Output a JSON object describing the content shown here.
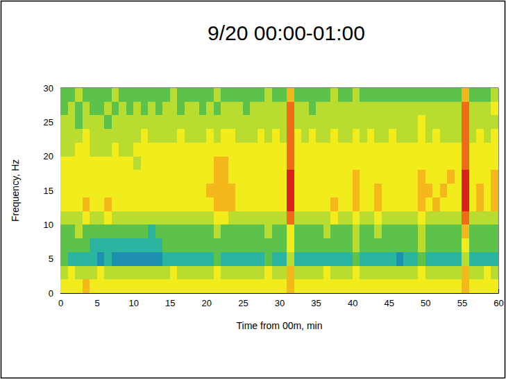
{
  "chart_data": {
    "type": "heatmap",
    "title": "9/20 00:00-01:00",
    "x_label": "Time from 00m, min",
    "y_label": "Frequency, Hz",
    "xlim": [
      0,
      60
    ],
    "ylim": [
      0,
      30
    ],
    "xticks": [
      0,
      5,
      10,
      15,
      20,
      25,
      30,
      35,
      40,
      45,
      50,
      55,
      60
    ],
    "yticks": [
      0,
      5,
      10,
      15,
      20,
      25,
      30
    ],
    "zlim": [
      0,
      9
    ],
    "x_bins": [
      0,
      1,
      2,
      3,
      4,
      5,
      6,
      7,
      8,
      9,
      10,
      11,
      12,
      13,
      14,
      15,
      16,
      17,
      18,
      19,
      20,
      21,
      22,
      23,
      24,
      25,
      26,
      27,
      28,
      29,
      30,
      31,
      32,
      33,
      34,
      35,
      36,
      37,
      38,
      39,
      40,
      41,
      42,
      43,
      44,
      45,
      46,
      47,
      48,
      49,
      50,
      51,
      52,
      53,
      54,
      55,
      56,
      57,
      58,
      59,
      60
    ],
    "y_bins": [
      0,
      2,
      4,
      6,
      8,
      10,
      12,
      14,
      16,
      18,
      20,
      22,
      24,
      26,
      28,
      30
    ],
    "cells": [
      [
        6,
        6,
        6,
        7,
        6,
        6,
        6,
        6,
        6,
        6,
        6,
        6,
        6,
        6,
        6,
        6,
        6,
        6,
        6,
        6,
        6,
        6,
        6,
        6,
        6,
        6,
        6,
        6,
        6,
        6,
        6,
        7,
        6,
        6,
        6,
        6,
        6,
        6,
        6,
        6,
        6,
        6,
        6,
        6,
        6,
        6,
        6,
        6,
        6,
        6,
        6,
        6,
        6,
        6,
        6,
        7,
        6,
        6,
        6,
        6
      ],
      [
        5,
        6,
        5,
        5,
        5,
        6,
        5,
        5,
        5,
        5,
        5,
        5,
        5,
        5,
        5,
        6,
        5,
        5,
        5,
        5,
        5,
        6,
        5,
        5,
        5,
        5,
        5,
        5,
        6,
        5,
        5,
        7,
        5,
        5,
        5,
        5,
        6,
        5,
        5,
        5,
        6,
        5,
        5,
        5,
        5,
        5,
        5,
        5,
        5,
        6,
        5,
        5,
        5,
        5,
        5,
        7,
        5,
        5,
        6,
        5
      ],
      [
        4,
        3,
        3,
        3,
        3,
        2,
        3,
        2,
        2,
        2,
        2,
        2,
        2,
        2,
        3,
        3,
        3,
        3,
        3,
        3,
        3,
        4,
        3,
        3,
        3,
        3,
        3,
        3,
        4,
        3,
        3,
        5,
        3,
        3,
        3,
        3,
        3,
        3,
        3,
        3,
        4,
        3,
        3,
        3,
        3,
        3,
        2,
        3,
        3,
        4,
        3,
        3,
        3,
        3,
        3,
        5,
        3,
        3,
        3,
        3
      ],
      [
        4,
        4,
        4,
        4,
        3,
        3,
        3,
        3,
        3,
        3,
        3,
        3,
        3,
        3,
        4,
        4,
        4,
        4,
        4,
        4,
        4,
        4,
        4,
        4,
        4,
        4,
        4,
        4,
        4,
        4,
        4,
        6,
        4,
        4,
        4,
        4,
        4,
        4,
        4,
        4,
        5,
        4,
        4,
        4,
        4,
        4,
        4,
        4,
        4,
        5,
        4,
        4,
        4,
        4,
        4,
        6,
        4,
        4,
        4,
        4
      ],
      [
        4,
        4,
        5,
        4,
        4,
        4,
        4,
        4,
        4,
        4,
        4,
        4,
        3,
        4,
        4,
        4,
        4,
        4,
        4,
        4,
        4,
        5,
        4,
        4,
        4,
        4,
        4,
        4,
        5,
        4,
        4,
        6,
        4,
        4,
        4,
        4,
        5,
        4,
        4,
        4,
        5,
        4,
        4,
        5,
        4,
        4,
        4,
        4,
        4,
        5,
        4,
        4,
        4,
        4,
        4,
        7,
        4,
        4,
        4,
        4
      ],
      [
        5,
        5,
        5,
        6,
        5,
        5,
        6,
        5,
        5,
        5,
        5,
        5,
        5,
        5,
        5,
        5,
        5,
        5,
        5,
        5,
        5,
        6,
        6,
        5,
        5,
        5,
        5,
        5,
        5,
        5,
        5,
        8,
        5,
        5,
        5,
        5,
        5,
        6,
        5,
        5,
        6,
        5,
        5,
        6,
        5,
        5,
        5,
        5,
        5,
        6,
        5,
        5,
        5,
        5,
        5,
        8,
        5,
        5,
        5,
        5
      ],
      [
        6,
        6,
        6,
        7,
        6,
        6,
        7,
        6,
        6,
        6,
        6,
        6,
        6,
        6,
        6,
        6,
        6,
        6,
        6,
        6,
        6,
        7,
        7,
        7,
        6,
        6,
        6,
        6,
        6,
        6,
        6,
        9,
        6,
        6,
        6,
        6,
        6,
        7,
        6,
        6,
        7,
        6,
        6,
        7,
        6,
        6,
        6,
        6,
        6,
        7,
        6,
        7,
        6,
        6,
        6,
        9,
        6,
        7,
        6,
        7
      ],
      [
        6,
        6,
        6,
        6,
        6,
        6,
        6,
        6,
        6,
        6,
        6,
        6,
        6,
        6,
        6,
        6,
        6,
        6,
        6,
        6,
        7,
        7,
        7,
        7,
        6,
        6,
        6,
        6,
        6,
        6,
        6,
        9,
        6,
        6,
        6,
        6,
        6,
        6,
        6,
        6,
        7,
        6,
        6,
        7,
        6,
        6,
        6,
        6,
        6,
        7,
        7,
        6,
        7,
        6,
        6,
        9,
        6,
        7,
        6,
        7
      ],
      [
        6,
        6,
        6,
        6,
        6,
        6,
        6,
        6,
        6,
        6,
        6,
        6,
        6,
        6,
        6,
        6,
        6,
        6,
        6,
        6,
        6,
        7,
        7,
        6,
        6,
        6,
        6,
        6,
        6,
        6,
        6,
        9,
        6,
        6,
        6,
        6,
        6,
        6,
        6,
        6,
        7,
        6,
        6,
        6,
        6,
        6,
        6,
        6,
        6,
        7,
        6,
        6,
        6,
        7,
        6,
        9,
        6,
        6,
        6,
        7
      ],
      [
        6,
        6,
        6,
        6,
        6,
        6,
        6,
        6,
        6,
        6,
        5,
        6,
        6,
        6,
        6,
        6,
        6,
        6,
        6,
        6,
        6,
        7,
        7,
        6,
        6,
        6,
        6,
        6,
        6,
        6,
        6,
        8,
        6,
        6,
        6,
        6,
        6,
        6,
        6,
        6,
        6,
        6,
        6,
        6,
        6,
        6,
        6,
        6,
        6,
        6,
        6,
        6,
        6,
        6,
        6,
        8,
        6,
        6,
        6,
        6
      ],
      [
        5,
        5,
        6,
        6,
        5,
        5,
        5,
        6,
        5,
        5,
        6,
        6,
        6,
        6,
        6,
        6,
        6,
        6,
        6,
        6,
        6,
        6,
        6,
        6,
        6,
        6,
        6,
        6,
        6,
        6,
        6,
        8,
        6,
        6,
        6,
        6,
        6,
        6,
        6,
        6,
        6,
        6,
        6,
        6,
        6,
        6,
        6,
        6,
        6,
        6,
        6,
        6,
        6,
        6,
        6,
        8,
        6,
        6,
        6,
        6
      ],
      [
        5,
        5,
        5,
        6,
        5,
        5,
        5,
        5,
        5,
        5,
        5,
        6,
        5,
        5,
        5,
        5,
        6,
        5,
        5,
        5,
        6,
        5,
        6,
        6,
        5,
        5,
        5,
        6,
        5,
        6,
        5,
        8,
        6,
        5,
        6,
        5,
        5,
        6,
        5,
        5,
        6,
        5,
        6,
        5,
        5,
        6,
        5,
        5,
        5,
        6,
        5,
        6,
        5,
        5,
        5,
        8,
        5,
        6,
        5,
        6
      ],
      [
        5,
        5,
        4,
        5,
        5,
        5,
        4,
        5,
        5,
        5,
        5,
        5,
        5,
        5,
        5,
        5,
        5,
        5,
        5,
        5,
        5,
        5,
        5,
        5,
        5,
        5,
        5,
        5,
        5,
        5,
        5,
        8,
        5,
        5,
        5,
        5,
        5,
        5,
        5,
        5,
        5,
        5,
        5,
        5,
        5,
        5,
        5,
        5,
        5,
        6,
        5,
        5,
        5,
        5,
        5,
        8,
        5,
        5,
        5,
        5
      ],
      [
        4,
        5,
        4,
        5,
        4,
        4,
        5,
        4,
        5,
        4,
        5,
        4,
        5,
        4,
        5,
        5,
        4,
        5,
        5,
        4,
        5,
        4,
        5,
        5,
        5,
        4,
        5,
        5,
        5,
        5,
        5,
        8,
        5,
        5,
        4,
        5,
        5,
        5,
        5,
        5,
        5,
        5,
        5,
        5,
        5,
        5,
        5,
        5,
        5,
        5,
        5,
        5,
        5,
        5,
        5,
        8,
        5,
        5,
        5,
        6
      ],
      [
        4,
        4,
        5,
        4,
        4,
        4,
        4,
        5,
        4,
        4,
        4,
        4,
        4,
        4,
        4,
        5,
        4,
        4,
        4,
        4,
        4,
        5,
        4,
        4,
        4,
        4,
        4,
        4,
        5,
        4,
        4,
        7,
        4,
        4,
        4,
        4,
        4,
        5,
        4,
        4,
        5,
        4,
        4,
        4,
        4,
        4,
        4,
        4,
        4,
        4,
        4,
        4,
        4,
        4,
        4,
        7,
        4,
        4,
        4,
        5
      ]
    ]
  }
}
